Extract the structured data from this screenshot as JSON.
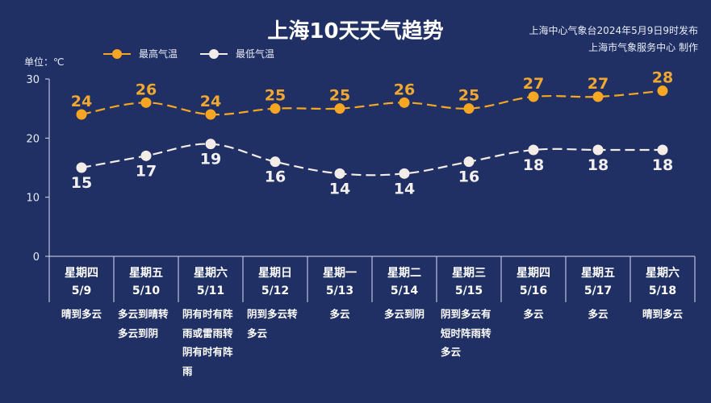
{
  "header": {
    "title": "上海10天天气趋势",
    "source_line1": "上海中心气象台2024年5月9日9时发布",
    "source_line2": "上海市气象服务中心 制作"
  },
  "unit_label": "单位：℃",
  "legend": {
    "high_label": "最高气温",
    "low_label": "最低气温"
  },
  "colors": {
    "background": "#203064",
    "high": "#f5a623",
    "low": "#f4ece6",
    "axis": "#d8deef"
  },
  "days": [
    {
      "weekday": "星期四",
      "date": "5/9",
      "weather": "晴到多云"
    },
    {
      "weekday": "星期五",
      "date": "5/10",
      "weather": "多云到晴转多云到阴"
    },
    {
      "weekday": "星期六",
      "date": "5/11",
      "weather": "阴有时有阵雨或雷雨转阴有时有阵雨"
    },
    {
      "weekday": "星期日",
      "date": "5/12",
      "weather": "阴到多云转多云"
    },
    {
      "weekday": "星期一",
      "date": "5/13",
      "weather": "多云"
    },
    {
      "weekday": "星期二",
      "date": "5/14",
      "weather": "多云到阴"
    },
    {
      "weekday": "星期三",
      "date": "5/15",
      "weather": "阴到多云有短时阵雨转多云"
    },
    {
      "weekday": "星期四",
      "date": "5/16",
      "weather": "多云"
    },
    {
      "weekday": "星期五",
      "date": "5/17",
      "weather": "多云"
    },
    {
      "weekday": "星期六",
      "date": "5/18",
      "weather": "晴到多云"
    }
  ],
  "chart_data": {
    "type": "line",
    "title": "上海10天天气趋势",
    "xlabel": "",
    "ylabel": "单位：℃",
    "categories": [
      "5/9",
      "5/10",
      "5/11",
      "5/12",
      "5/13",
      "5/14",
      "5/15",
      "5/16",
      "5/17",
      "5/18"
    ],
    "series": [
      {
        "name": "最高气温",
        "values": [
          24,
          26,
          24,
          25,
          25,
          26,
          25,
          27,
          27,
          28
        ],
        "color": "#f5a623",
        "line_style": "dashed"
      },
      {
        "name": "最低气温",
        "values": [
          15,
          17,
          19,
          16,
          14,
          14,
          16,
          18,
          18,
          18
        ],
        "color": "#f4ece6",
        "line_style": "dashed"
      }
    ],
    "yticks": [
      0,
      10,
      20,
      30
    ],
    "ylim": [
      0,
      30
    ],
    "grid": false,
    "legend_position": "top-left",
    "data_labels": true
  }
}
